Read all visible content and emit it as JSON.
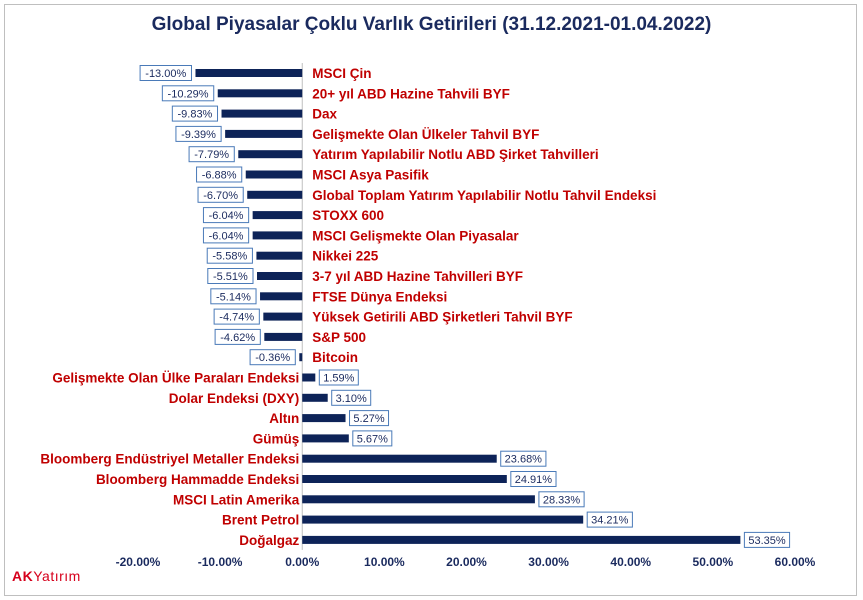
{
  "chart_data": {
    "type": "bar",
    "orientation": "horizontal",
    "title": "Global Piyasalar Çoklu Varlık Getirileri (31.12.2021-01.04.2022)",
    "xlim": [
      -20,
      60
    ],
    "tick_labels": [
      "-20.00%",
      "-10.00%",
      "0.00%",
      "10.00%",
      "20.00%",
      "30.00%",
      "40.00%",
      "50.00%",
      "60.00%"
    ],
    "bar_color": "#0d2358",
    "label_color": "#c00000",
    "categories": [
      "MSCI Çin",
      "20+ yıl ABD Hazine Tahvili BYF",
      "Dax",
      "Gelişmekte Olan Ülkeler Tahvil BYF",
      "Yatırım Yapılabilir Notlu  ABD Şirket Tahvilleri",
      "MSCI Asya Pasifik",
      "Global Toplam Yatırım Yapılabilir Notlu Tahvil Endeksi",
      "STOXX 600",
      "MSCI Gelişmekte Olan Piyasalar",
      "Nikkei 225",
      "3-7 yıl ABD Hazine Tahvilleri BYF",
      "FTSE Dünya Endeksi",
      "Yüksek Getirili ABD Şirketleri Tahvil BYF",
      "S&P 500",
      "Bitcoin",
      "Gelişmekte Olan Ülke Paraları Endeksi",
      "Dolar Endeksi (DXY)",
      "Altın",
      "Gümüş",
      "Bloomberg Endüstriyel Metaller Endeksi",
      "Bloomberg Hammadde Endeksi",
      "MSCI Latin Amerika",
      "Brent Petrol",
      "Doğalgaz"
    ],
    "values": [
      -13.0,
      -10.29,
      -9.83,
      -9.39,
      -7.79,
      -6.88,
      -6.7,
      -6.04,
      -6.04,
      -5.58,
      -5.51,
      -5.14,
      -4.74,
      -4.62,
      -0.36,
      1.59,
      3.1,
      5.27,
      5.67,
      23.68,
      24.91,
      28.33,
      34.21,
      53.35
    ],
    "data_labels": [
      "-13.00%",
      "-10.29%",
      "-9.83%",
      "-9.39%",
      "-7.79%",
      "-6.88%",
      "-6.70%",
      "-6.04%",
      "-6.04%",
      "-5.58%",
      "-5.51%",
      "-5.14%",
      "-4.74%",
      "-4.62%",
      "-0.36%",
      "1.59%",
      "3.10%",
      "5.27%",
      "5.67%",
      "23.68%",
      "24.91%",
      "28.33%",
      "34.21%",
      "53.35%"
    ],
    "grid": false,
    "legend": "none"
  },
  "logo": {
    "ak": "AK",
    "rest": "Yatırım"
  }
}
